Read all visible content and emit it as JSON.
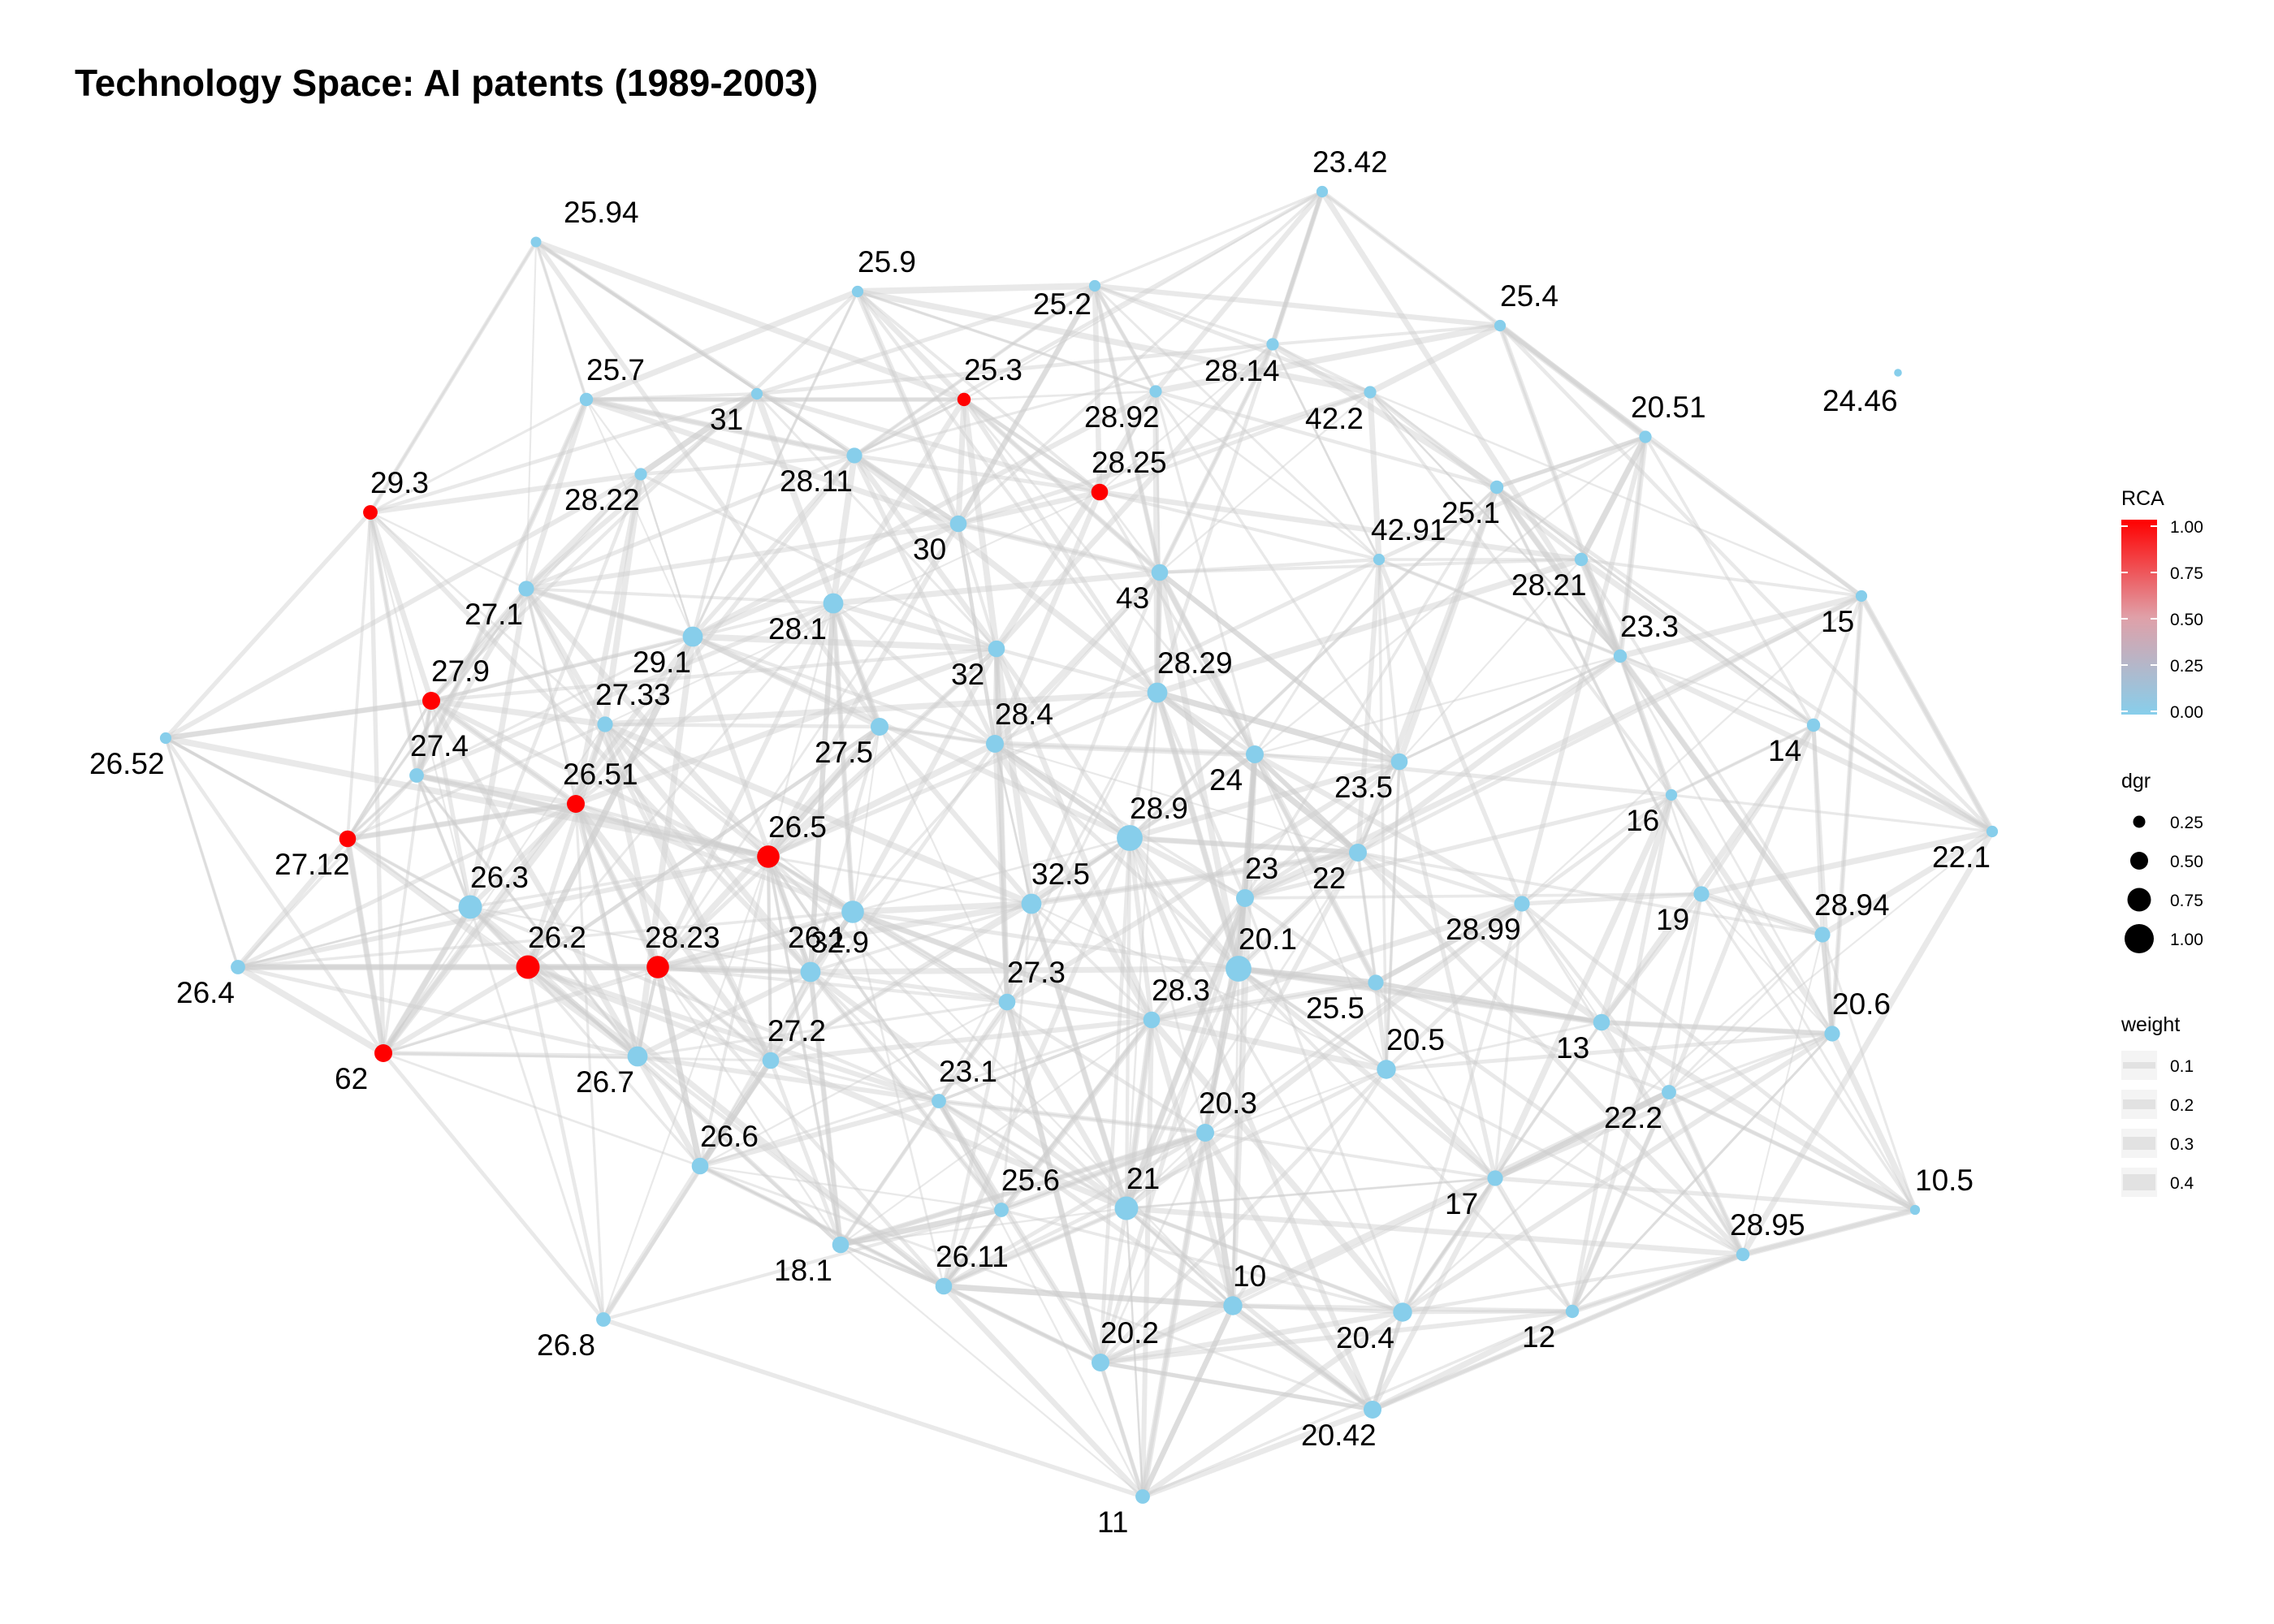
{
  "title": "Technology Space: AI patents (1989-2003)",
  "colors": {
    "rca_low": "#87ceeb",
    "rca_high": "#ff0000",
    "edge": "#cfcfcf"
  },
  "legend": {
    "rca": {
      "title": "RCA",
      "ticks": [
        "1.00",
        "0.75",
        "0.50",
        "0.25",
        "0.00"
      ]
    },
    "dgr": {
      "title": "dgr",
      "ticks": [
        "0.25",
        "0.50",
        "0.75",
        "1.00"
      ]
    },
    "weight": {
      "title": "weight",
      "ticks": [
        "0.1",
        "0.2",
        "0.3",
        "0.4"
      ]
    }
  },
  "nodes": [
    {
      "id": "25.94",
      "rca": 0,
      "dgr": 0.18
    },
    {
      "id": "25.9",
      "rca": 0,
      "dgr": 0.22
    },
    {
      "id": "25.2",
      "rca": 0,
      "dgr": 0.22
    },
    {
      "id": "23.42",
      "rca": 0,
      "dgr": 0.22
    },
    {
      "id": "25.4",
      "rca": 0,
      "dgr": 0.22
    },
    {
      "id": "25.7",
      "rca": 0,
      "dgr": 0.3
    },
    {
      "id": "31",
      "rca": 0,
      "dgr": 0.22
    },
    {
      "id": "25.3",
      "rca": 1,
      "dgr": 0.3
    },
    {
      "id": "28.14",
      "rca": 0,
      "dgr": 0.26
    },
    {
      "id": "28.92",
      "rca": 0,
      "dgr": 0.26
    },
    {
      "id": "42.2",
      "rca": 0,
      "dgr": 0.26
    },
    {
      "id": "20.51",
      "rca": 0,
      "dgr": 0.26
    },
    {
      "id": "24.46",
      "rca": 0,
      "dgr": 0.06
    },
    {
      "id": "29.3",
      "rca": 1,
      "dgr": 0.35
    },
    {
      "id": "28.22",
      "rca": 0,
      "dgr": 0.26
    },
    {
      "id": "28.11",
      "rca": 0,
      "dgr": 0.4
    },
    {
      "id": "28.25",
      "rca": 1,
      "dgr": 0.45
    },
    {
      "id": "25.1",
      "rca": 0,
      "dgr": 0.3
    },
    {
      "id": "30",
      "rca": 0,
      "dgr": 0.45
    },
    {
      "id": "42.91",
      "rca": 0,
      "dgr": 0.22
    },
    {
      "id": "28.21",
      "rca": 0,
      "dgr": 0.3
    },
    {
      "id": "27.1",
      "rca": 0,
      "dgr": 0.4
    },
    {
      "id": "43",
      "rca": 0,
      "dgr": 0.45
    },
    {
      "id": "28.1",
      "rca": 0,
      "dgr": 0.6
    },
    {
      "id": "29.1",
      "rca": 0,
      "dgr": 0.6
    },
    {
      "id": "15",
      "rca": 0,
      "dgr": 0.22
    },
    {
      "id": "23.3",
      "rca": 0,
      "dgr": 0.3
    },
    {
      "id": "32",
      "rca": 0,
      "dgr": 0.45
    },
    {
      "id": "28.29",
      "rca": 0,
      "dgr": 0.6
    },
    {
      "id": "27.9",
      "rca": 1,
      "dgr": 0.5
    },
    {
      "id": "27.33",
      "rca": 0,
      "dgr": 0.4
    },
    {
      "id": "26.52",
      "rca": 0,
      "dgr": 0.22
    },
    {
      "id": "28.4",
      "rca": 0,
      "dgr": 0.5
    },
    {
      "id": "27.5",
      "rca": 0,
      "dgr": 0.5
    },
    {
      "id": "14",
      "rca": 0,
      "dgr": 0.3
    },
    {
      "id": "27.4",
      "rca": 0,
      "dgr": 0.35
    },
    {
      "id": "24",
      "rca": 0,
      "dgr": 0.5
    },
    {
      "id": "23.5",
      "rca": 0,
      "dgr": 0.45
    },
    {
      "id": "26.51",
      "rca": 1,
      "dgr": 0.5
    },
    {
      "id": "16",
      "rca": 0,
      "dgr": 0.22
    },
    {
      "id": "27.12",
      "rca": 1,
      "dgr": 0.45
    },
    {
      "id": "26.5",
      "rca": 1,
      "dgr": 0.7
    },
    {
      "id": "28.9",
      "rca": 0,
      "dgr": 0.85
    },
    {
      "id": "22.1",
      "rca": 0,
      "dgr": 0.22
    },
    {
      "id": "26.1",
      "rca": 0,
      "dgr": 0.7
    },
    {
      "id": "22",
      "rca": 0,
      "dgr": 0.5
    },
    {
      "id": "23",
      "rca": 0,
      "dgr": 0.5
    },
    {
      "id": "26.3",
      "rca": 0,
      "dgr": 0.75
    },
    {
      "id": "32.5",
      "rca": 0,
      "dgr": 0.6
    },
    {
      "id": "19",
      "rca": 0,
      "dgr": 0.4
    },
    {
      "id": "28.99",
      "rca": 0,
      "dgr": 0.4
    },
    {
      "id": "28.94",
      "rca": 0,
      "dgr": 0.4
    },
    {
      "id": "26.2",
      "rca": 1,
      "dgr": 0.75
    },
    {
      "id": "28.23",
      "rca": 1,
      "dgr": 0.7
    },
    {
      "id": "32.9",
      "rca": 0,
      "dgr": 0.6
    },
    {
      "id": "20.1",
      "rca": 0,
      "dgr": 0.85
    },
    {
      "id": "26.4",
      "rca": 0,
      "dgr": 0.35
    },
    {
      "id": "27.3",
      "rca": 0,
      "dgr": 0.45
    },
    {
      "id": "28.3",
      "rca": 0,
      "dgr": 0.45
    },
    {
      "id": "25.5",
      "rca": 0,
      "dgr": 0.4
    },
    {
      "id": "20.6",
      "rca": 0,
      "dgr": 0.4
    },
    {
      "id": "13",
      "rca": 0,
      "dgr": 0.45
    },
    {
      "id": "62",
      "rca": 1,
      "dgr": 0.5
    },
    {
      "id": "27.2",
      "rca": 0,
      "dgr": 0.45
    },
    {
      "id": "26.7",
      "rca": 0,
      "dgr": 0.6
    },
    {
      "id": "20.5",
      "rca": 0,
      "dgr": 0.55
    },
    {
      "id": "23.1",
      "rca": 0,
      "dgr": 0.35
    },
    {
      "id": "22.2",
      "rca": 0,
      "dgr": 0.35
    },
    {
      "id": "20.3",
      "rca": 0,
      "dgr": 0.5
    },
    {
      "id": "26.6",
      "rca": 0,
      "dgr": 0.45
    },
    {
      "id": "10.5",
      "rca": 0,
      "dgr": 0.15
    },
    {
      "id": "25.6",
      "rca": 0,
      "dgr": 0.35
    },
    {
      "id": "21",
      "rca": 0,
      "dgr": 0.75
    },
    {
      "id": "17",
      "rca": 0,
      "dgr": 0.4
    },
    {
      "id": "28.95",
      "rca": 0,
      "dgr": 0.3
    },
    {
      "id": "18.1",
      "rca": 0,
      "dgr": 0.45
    },
    {
      "id": "26.11",
      "rca": 0,
      "dgr": 0.45
    },
    {
      "id": "10",
      "rca": 0,
      "dgr": 0.55
    },
    {
      "id": "20.4",
      "rca": 0,
      "dgr": 0.55
    },
    {
      "id": "12",
      "rca": 0,
      "dgr": 0.3
    },
    {
      "id": "26.8",
      "rca": 0,
      "dgr": 0.35
    },
    {
      "id": "20.2",
      "rca": 0,
      "dgr": 0.5
    },
    {
      "id": "20.42",
      "rca": 0,
      "dgr": 0.5
    },
    {
      "id": "11",
      "rca": 0,
      "dgr": 0.35
    }
  ]
}
